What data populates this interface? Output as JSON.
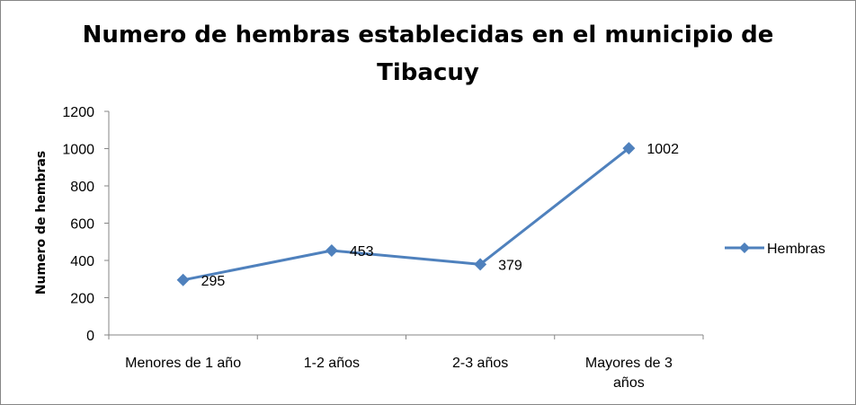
{
  "chart_data": {
    "type": "line",
    "title": "Numero de hembras establecidas en el municipio de Tibacuy",
    "title_lines": [
      "Numero de hembras establecidas en el municipio de",
      "Tibacuy"
    ],
    "xlabel": "",
    "ylabel": "Numero de hembras",
    "categories": [
      [
        "Menores de 1 año"
      ],
      [
        "1-2 años"
      ],
      [
        "2-3 años"
      ],
      [
        "Mayores de  3",
        "años"
      ]
    ],
    "series": [
      {
        "name": "Hembras",
        "values": [
          295,
          453,
          379,
          1002
        ],
        "color": "#4f81bd"
      }
    ],
    "ylim": [
      0,
      1200
    ],
    "yticks": [
      0,
      200,
      400,
      600,
      800,
      1000,
      1200
    ],
    "grid": false,
    "legend": "right",
    "data_labels": true
  }
}
